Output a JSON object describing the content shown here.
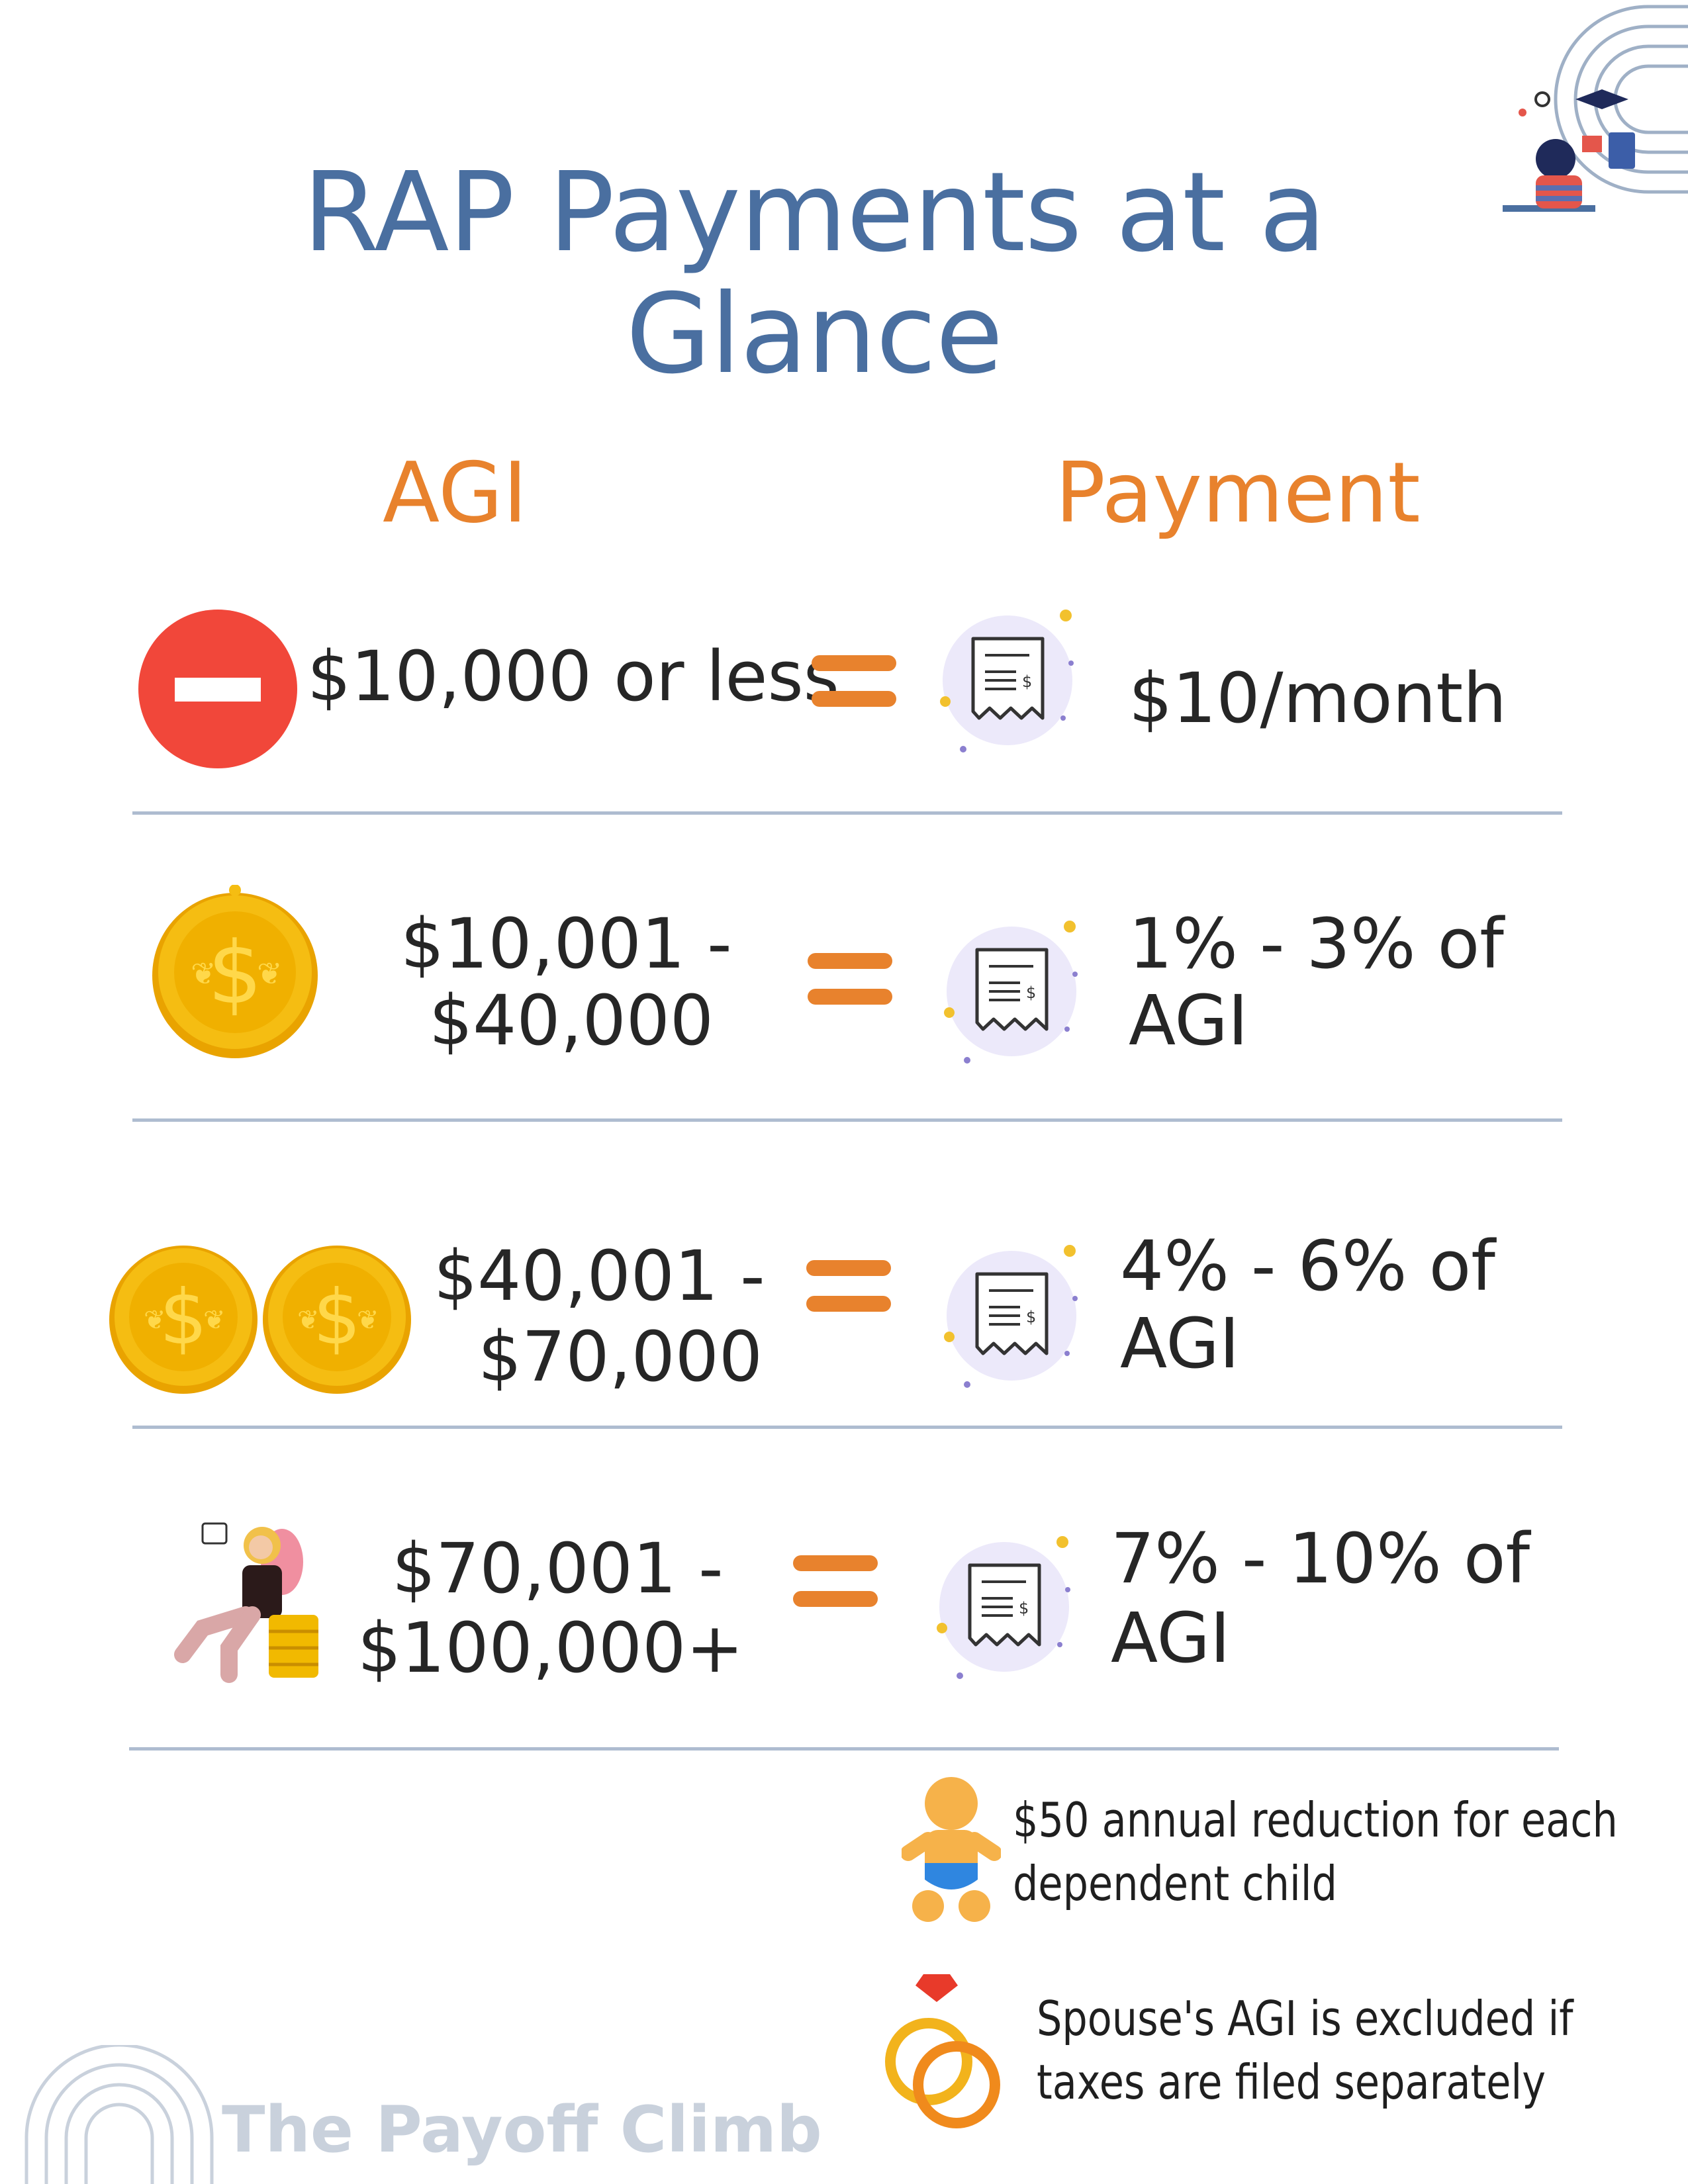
{
  "title": "RAP Payments at a Glance",
  "columns": {
    "agi": "AGI",
    "payment": "Payment"
  },
  "rows": [
    {
      "agi_line1": "$10,000 or less",
      "agi_line2": "",
      "payment_line1": "$10/month",
      "payment_line2": "",
      "icon": "no-entry-icon"
    },
    {
      "agi_line1": "$10,001 -",
      "agi_line2": "$40,000",
      "payment_line1": "1% - 3% of",
      "payment_line2": "AGI",
      "icon": "gold-coin-icon"
    },
    {
      "agi_line1": "$40,001 -",
      "agi_line2": "$70,000",
      "payment_line1": "4% - 6% of",
      "payment_line2": "AGI",
      "icon": "two-gold-coins-icon"
    },
    {
      "agi_line1": "$70,001 -",
      "agi_line2": "$100,000+",
      "payment_line1": "7% - 10% of",
      "payment_line2": "AGI",
      "icon": "woman-on-coins-icon"
    }
  ],
  "notes": {
    "child_line1": "$50 annual reduction for each",
    "child_line2": "dependent child",
    "spouse_line1": "Spouse's AGI is excluded if",
    "spouse_line2": "taxes are filed separately"
  },
  "brand": "The Payoff Climb",
  "colors": {
    "title": "#4a6fa0",
    "accent": "#e8822d",
    "divider": "#aebcd0",
    "coin": "#f0b400",
    "stop": "#f1473a"
  }
}
